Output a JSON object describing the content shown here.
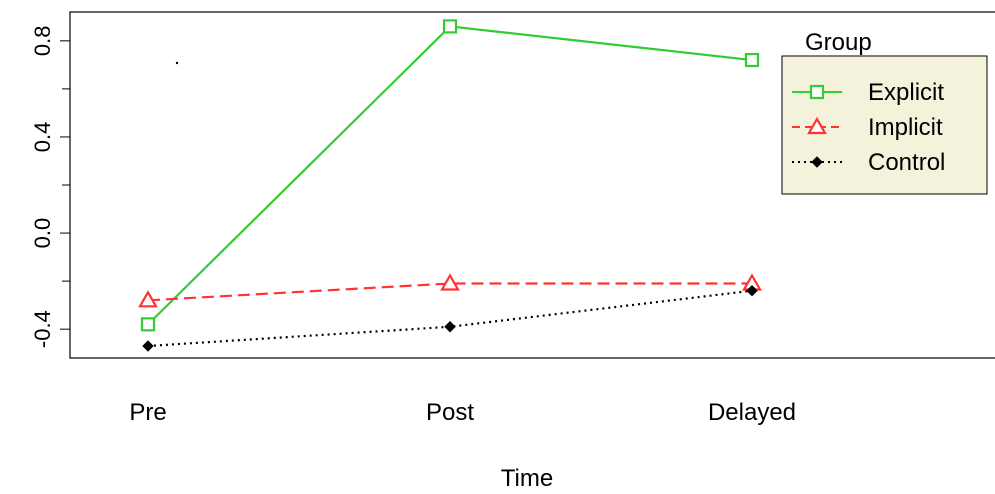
{
  "chart_data": {
    "type": "line",
    "title": "",
    "xlabel": "Time",
    "ylabel": "",
    "categories": [
      "Pre",
      "Post",
      "Delayed"
    ],
    "ylim": [
      -0.52,
      0.92
    ],
    "yticks": [
      -0.4,
      0.0,
      0.4,
      0.8
    ],
    "ytick_labels": [
      "-0.4",
      "0.0",
      "0.4",
      "0.8"
    ],
    "grid": false,
    "legend": {
      "title": "Group",
      "position": "top-right"
    },
    "series": [
      {
        "name": "Explicit",
        "color": "#33cc33",
        "line": "solid",
        "marker": "square",
        "values": [
          -0.38,
          0.86,
          0.72
        ]
      },
      {
        "name": "Implicit",
        "color": "#ff3333",
        "line": "dashed",
        "marker": "triangle",
        "values": [
          -0.28,
          -0.21,
          -0.21
        ]
      },
      {
        "name": "Control",
        "color": "#000000",
        "line": "dotted",
        "marker": "diamond",
        "values": [
          -0.47,
          -0.39,
          -0.24
        ]
      }
    ],
    "colors": {
      "legend_background": "#f5f2dc",
      "axis": "#000000"
    }
  }
}
